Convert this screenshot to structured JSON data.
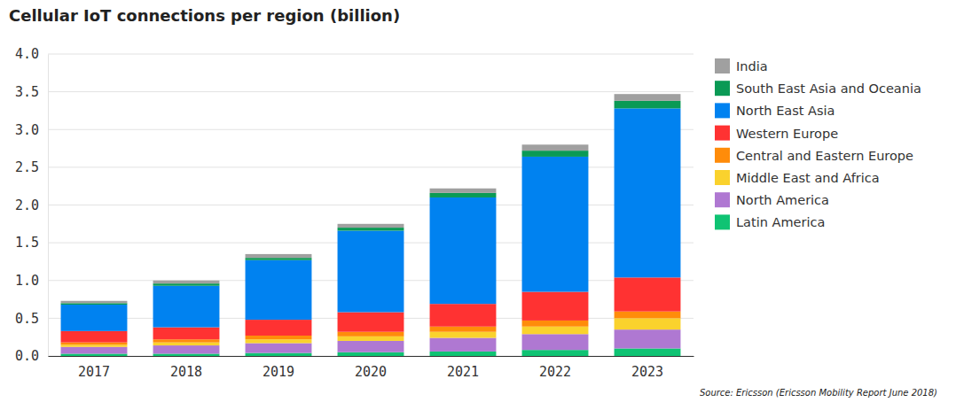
{
  "chart_data": {
    "type": "bar",
    "stacked": true,
    "title": "Cellular IoT connections per region (billion)",
    "source": "Source: Ericsson (Ericsson Mobility Report June 2018)",
    "categories": [
      "2017",
      "2018",
      "2019",
      "2020",
      "2021",
      "2022",
      "2023"
    ],
    "ylim": [
      0,
      4
    ],
    "yticks": [
      {
        "value": 0,
        "label": "0.0"
      },
      0.5,
      {
        "value": 1,
        "label": "1.0"
      },
      1.5,
      {
        "value": 2,
        "label": "2.0"
      },
      2.5,
      {
        "value": 3,
        "label": "3.0"
      },
      3.5,
      {
        "value": 4,
        "label": "4.0"
      }
    ],
    "grid": true,
    "legend": "top-right",
    "series": [
      {
        "name": "Latin America",
        "color": "#0fc373",
        "values": [
          0.03,
          0.03,
          0.04,
          0.05,
          0.06,
          0.08,
          0.1
        ]
      },
      {
        "name": "North America",
        "color": "#af78d2",
        "values": [
          0.09,
          0.11,
          0.13,
          0.15,
          0.18,
          0.21,
          0.25
        ]
      },
      {
        "name": "Middle East and Africa",
        "color": "#fad22d",
        "values": [
          0.03,
          0.04,
          0.05,
          0.06,
          0.08,
          0.1,
          0.15
        ]
      },
      {
        "name": "Central and Eastern Europe",
        "color": "#ff8c0a",
        "values": [
          0.03,
          0.04,
          0.05,
          0.06,
          0.07,
          0.08,
          0.09
        ]
      },
      {
        "name": "Western Europe",
        "color": "#ff3232",
        "values": [
          0.15,
          0.16,
          0.21,
          0.26,
          0.3,
          0.38,
          0.45
        ]
      },
      {
        "name": "North East Asia",
        "color": "#0082f0",
        "values": [
          0.35,
          0.55,
          0.79,
          1.08,
          1.41,
          1.79,
          2.24
        ]
      },
      {
        "name": "South East Asia and Oceania",
        "color": "#0a9a55",
        "values": [
          0.02,
          0.03,
          0.03,
          0.04,
          0.06,
          0.08,
          0.1
        ]
      },
      {
        "name": "India",
        "color": "#a0a0a0",
        "values": [
          0.03,
          0.04,
          0.05,
          0.05,
          0.06,
          0.08,
          0.09
        ]
      }
    ]
  }
}
